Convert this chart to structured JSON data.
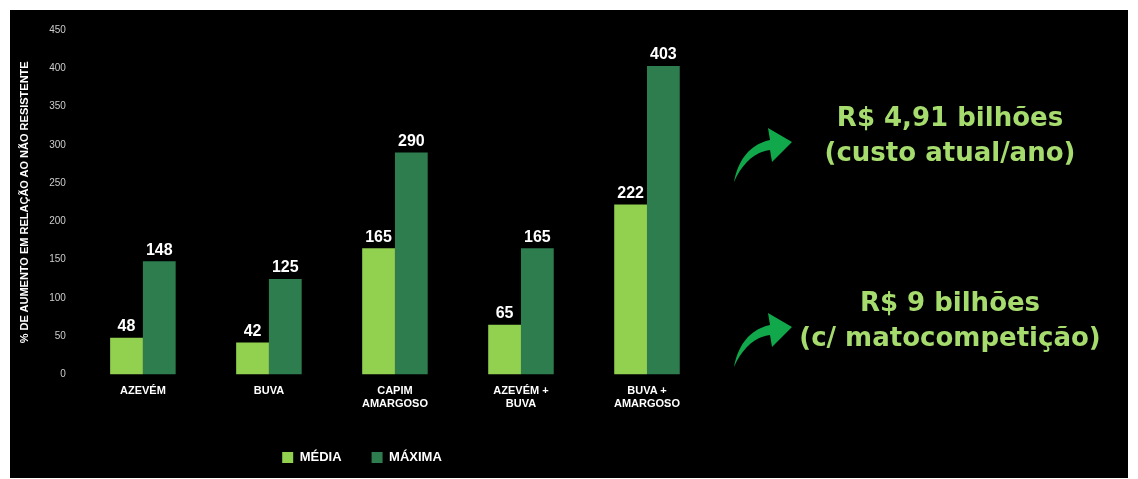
{
  "chart_data": {
    "type": "bar",
    "ylabel": "% DE AUMENTO EM RELAÇÃO AO NÃO RESISTENTE",
    "categories": [
      "AZEVÉM",
      "BUVA",
      "CAPIM\nAMARGOSO",
      "AZEVÉM +\nBUVA",
      "BUVA +\nAMARGOSO"
    ],
    "series": [
      {
        "name": "MÉDIA",
        "color": "#92d050",
        "values": [
          48,
          42,
          165,
          65,
          222
        ]
      },
      {
        "name": "MÁXIMA",
        "color": "#2e7d4f",
        "values": [
          148,
          125,
          290,
          165,
          403
        ]
      }
    ],
    "ylim": [
      0,
      450
    ],
    "yticks": [
      0,
      50,
      100,
      150,
      200,
      250,
      300,
      350,
      400,
      450
    ],
    "data_labels": true,
    "grid": false,
    "legend": "bottom",
    "annotations": [
      "R$ 4,91 bilhões\n(custo atual/ano)",
      "R$ 9 bilhões\n(c/ matocompetição)"
    ]
  }
}
